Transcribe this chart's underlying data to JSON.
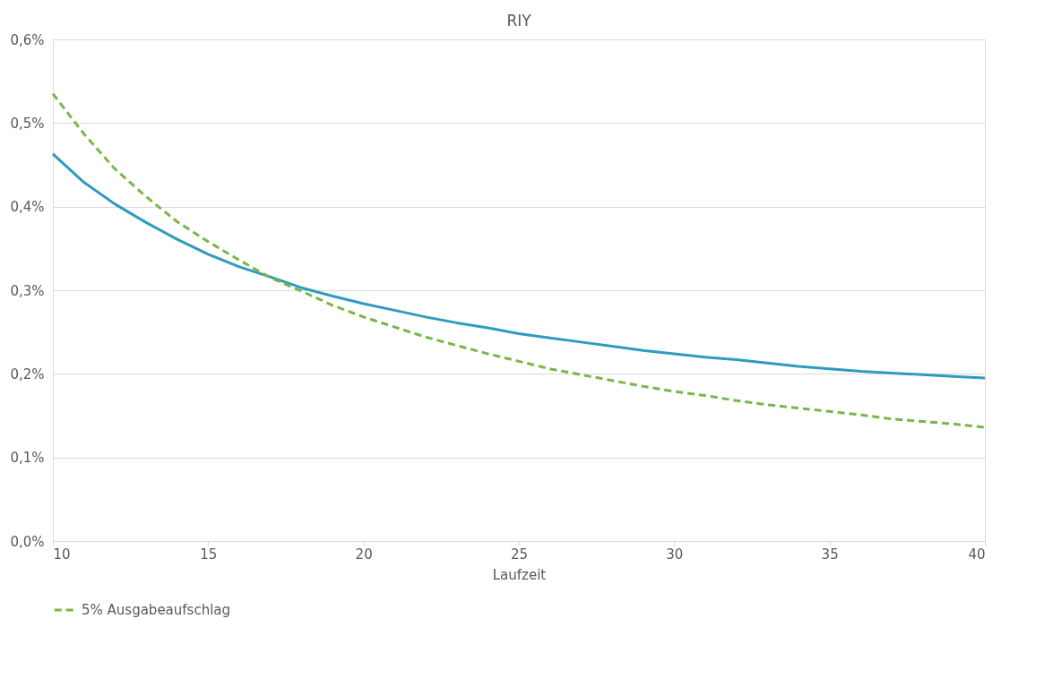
{
  "chart_data": {
    "type": "line",
    "title": "RIY",
    "xlabel": "Laufzeit",
    "x": [
      10,
      11,
      12,
      13,
      14,
      15,
      16,
      17,
      18,
      19,
      20,
      21,
      22,
      23,
      24,
      25,
      26,
      27,
      28,
      29,
      30,
      31,
      32,
      33,
      34,
      35,
      36,
      37,
      38,
      39,
      40
    ],
    "series": [
      {
        "color": "#2e9bbf",
        "line_style": "solid",
        "values": [
          0.463,
          0.429,
          0.403,
          0.381,
          0.361,
          0.343,
          0.328,
          0.316,
          0.303,
          0.293,
          0.284,
          0.276,
          0.268,
          0.261,
          0.255,
          0.248,
          0.243,
          0.238,
          0.233,
          0.228,
          0.224,
          0.22,
          0.217,
          0.213,
          0.209,
          0.206,
          0.203,
          0.201,
          0.199,
          0.197,
          0.195
        ]
      },
      {
        "name": "5% Ausgabeaufschlag",
        "color": "#7ab648",
        "line_style": "dashed",
        "values": [
          0.535,
          0.487,
          0.445,
          0.412,
          0.382,
          0.358,
          0.336,
          0.315,
          0.299,
          0.282,
          0.268,
          0.256,
          0.244,
          0.234,
          0.224,
          0.215,
          0.206,
          0.199,
          0.192,
          0.185,
          0.179,
          0.174,
          0.168,
          0.163,
          0.159,
          0.155,
          0.151,
          0.146,
          0.143,
          0.14,
          0.136
        ]
      }
    ],
    "xlim": [
      10,
      40
    ],
    "xticks": [
      10,
      15,
      20,
      25,
      30,
      35,
      40
    ],
    "ylim": [
      0,
      0.6
    ],
    "yticks": [
      {
        "value": 0,
        "label": "0,0%"
      },
      {
        "value": 0.1,
        "label": "0,1%"
      },
      {
        "value": 0.2,
        "label": "0,2%"
      },
      {
        "value": 0.3,
        "label": "0,3%"
      },
      {
        "value": 0.4,
        "label": "0,4%"
      },
      {
        "value": 0.5,
        "label": "0,5%"
      },
      {
        "value": 0.6,
        "label": "0,6%"
      }
    ],
    "grid": "y",
    "legend": "bottom",
    "marker": "none"
  }
}
